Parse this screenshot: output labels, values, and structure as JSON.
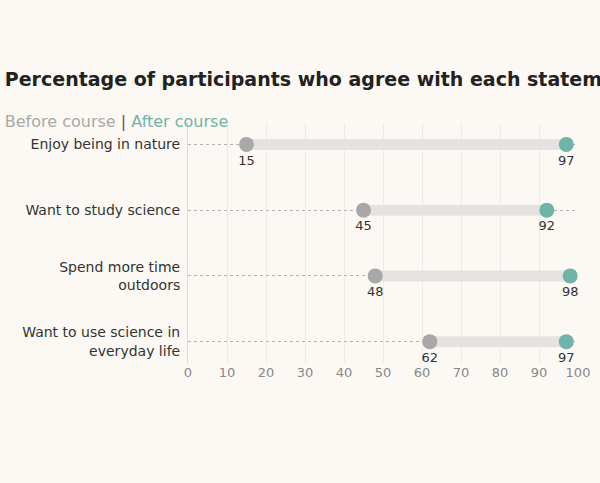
{
  "chart_data": {
    "type": "dumbbell",
    "title": "Percentage of participants who agree with each statement",
    "subtitle": "Before course | After course",
    "orientation": "horizontal",
    "categories": [
      "Enjoy being in nature",
      "Want to study science",
      "Spend more time outdoors",
      "Want to use science in everyday life"
    ],
    "series": [
      {
        "name": "Before course",
        "color": "#a8a8a8",
        "values": [
          15,
          45,
          48,
          62
        ]
      },
      {
        "name": "After course",
        "color": "#6fb3a9",
        "values": [
          97,
          92,
          98,
          97
        ]
      }
    ],
    "xlim": [
      0,
      100
    ],
    "xticks": [
      0,
      10,
      20,
      30,
      40,
      50,
      60,
      70,
      80,
      90,
      100
    ],
    "grid": true,
    "data_labels": true
  }
}
